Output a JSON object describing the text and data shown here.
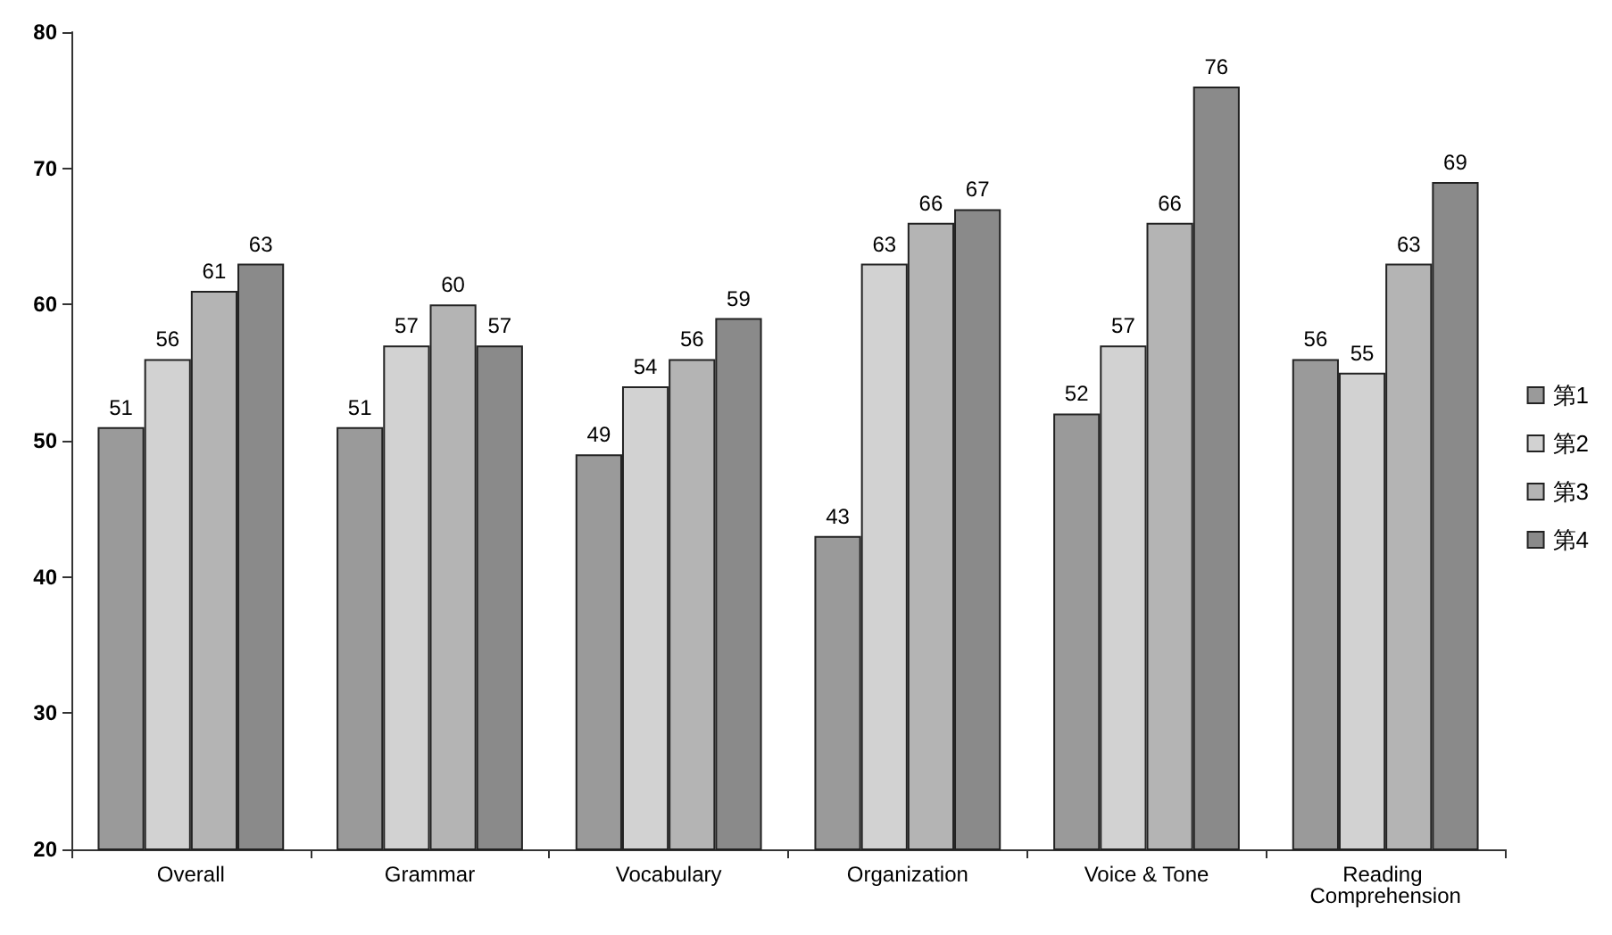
{
  "chart_data": {
    "type": "bar",
    "categories": [
      "Overall",
      "Grammar",
      "Vocabulary",
      "Organization",
      "Voice & Tone",
      "Reading Comprehension"
    ],
    "series": [
      {
        "name": "第1",
        "color": "#9a9a9a",
        "values": [
          51,
          51,
          49,
          43,
          52,
          56
        ]
      },
      {
        "name": "第2",
        "color": "#d2d2d2",
        "values": [
          56,
          57,
          54,
          63,
          57,
          55
        ]
      },
      {
        "name": "第3",
        "color": "#b4b4b4",
        "values": [
          61,
          60,
          56,
          66,
          66,
          63
        ]
      },
      {
        "name": "第4",
        "color": "#8a8a8a",
        "values": [
          63,
          57,
          59,
          67,
          76,
          69
        ]
      }
    ],
    "ylim": [
      20,
      80
    ],
    "yticks": [
      20,
      30,
      40,
      50,
      60,
      70,
      80
    ],
    "grid": false,
    "legend": "right",
    "data_labels": true
  }
}
